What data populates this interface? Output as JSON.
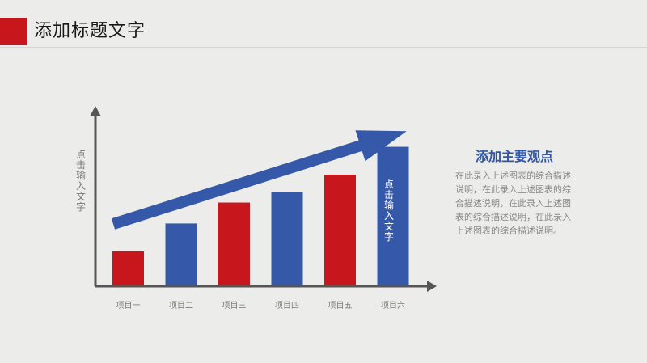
{
  "header": {
    "title": "添加标题文字"
  },
  "chart_data": {
    "type": "bar",
    "categories": [
      "项目一",
      "项目二",
      "项目三",
      "项目四",
      "项目五",
      "项目六"
    ],
    "values": [
      1,
      1.8,
      2.4,
      2.7,
      3.2,
      4.0
    ],
    "bar_colors": [
      "#c8161d",
      "#3559a8",
      "#c8161d",
      "#3559a8",
      "#c8161d",
      "#3559a8"
    ],
    "ylabel": "点击输入文字",
    "ylim": [
      0,
      4.5
    ],
    "grid": false,
    "annotations": [
      {
        "type": "trend-arrow",
        "color": "#3559a8",
        "direction": "up-right"
      },
      {
        "type": "bar-text",
        "category_index": 5,
        "text": "点击输入文字",
        "color": "#ffffff"
      }
    ]
  },
  "side_panel": {
    "heading": "添加主要观点",
    "body": "在此录入上述图表的综合描述说明，在此录入上述图表的综合描述说明，在此录入上述图表的综合描述说明，在此录入上述图表的综合描述说明。"
  },
  "colors": {
    "accent_red": "#c8161d",
    "accent_blue": "#3559a8",
    "axis": "#555555",
    "background": "#ececea"
  }
}
